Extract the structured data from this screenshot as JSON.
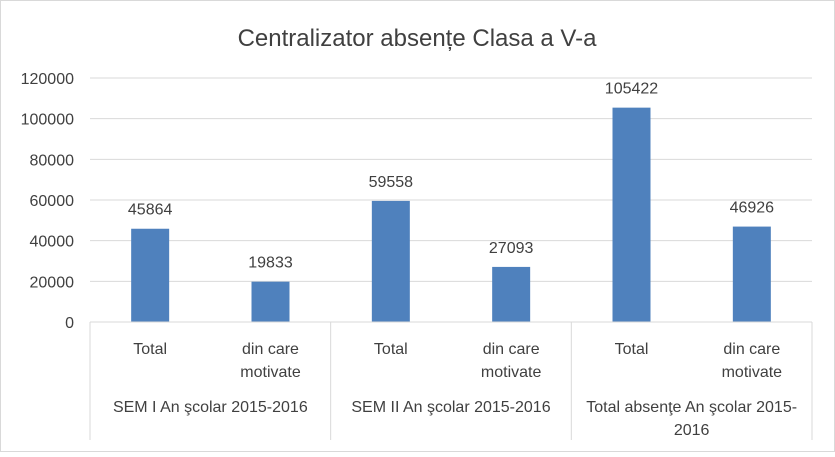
{
  "chart_data": {
    "type": "bar",
    "title": "Centralizator absențe Clasa a V-a",
    "groups": [
      {
        "label_lines": [
          "SEM I An şcolar 2015-2016"
        ],
        "bars": [
          {
            "label_lines": [
              "Total"
            ],
            "value": 45864
          },
          {
            "label_lines": [
              "din care",
              "motivate"
            ],
            "value": 19833
          }
        ]
      },
      {
        "label_lines": [
          "SEM II An şcolar 2015-2016"
        ],
        "bars": [
          {
            "label_lines": [
              "Total"
            ],
            "value": 59558
          },
          {
            "label_lines": [
              "din care",
              "motivate"
            ],
            "value": 27093
          }
        ]
      },
      {
        "label_lines": [
          "Total absenţe An şcolar 2015-",
          "2016"
        ],
        "bars": [
          {
            "label_lines": [
              "Total"
            ],
            "value": 105422
          },
          {
            "label_lines": [
              "din care",
              "motivate"
            ],
            "value": 46926
          }
        ]
      }
    ],
    "ylim": [
      0,
      120000
    ],
    "yticks": [
      0,
      20000,
      40000,
      60000,
      80000,
      100000,
      120000
    ],
    "grid": true,
    "bar_color": "#4f81bd",
    "grid_color": "#d9d9d9",
    "text_color": "#404040"
  }
}
